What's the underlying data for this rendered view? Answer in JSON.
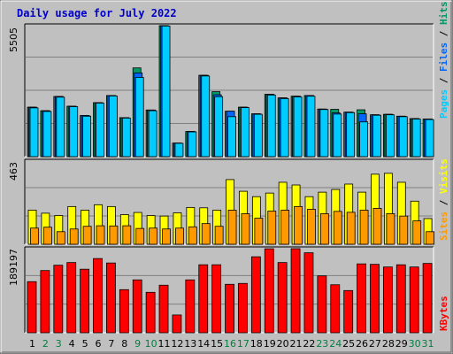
{
  "chart_data": [
    {
      "type": "bar",
      "title": "Daily usage for July 2022",
      "ylabel_parts": [
        "Pages",
        "Files",
        "Hits"
      ],
      "ymax_label": "5505",
      "ylim": [
        0,
        5505
      ],
      "grid": true,
      "categories": [
        "1",
        "2",
        "3",
        "4",
        "5",
        "6",
        "7",
        "8",
        "9",
        "10",
        "11",
        "12",
        "13",
        "14",
        "15",
        "16",
        "17",
        "18",
        "19",
        "20",
        "21",
        "22",
        "23",
        "24",
        "25",
        "26",
        "27",
        "28",
        "29",
        "30",
        "31"
      ],
      "weekend_days": [
        "2",
        "3",
        "9",
        "10",
        "16",
        "17",
        "23",
        "24",
        "30",
        "31"
      ],
      "series": [
        {
          "name": "Hits",
          "color": "#009966",
          "values": [
            2080,
            1930,
            2530,
            2120,
            1730,
            2270,
            2570,
            1640,
            3730,
            1960,
            5505,
            570,
            1060,
            3420,
            2730,
            1910,
            2080,
            1800,
            2620,
            2470,
            2540,
            2570,
            2000,
            1990,
            1870,
            1970,
            1760,
            1780,
            1700,
            1600,
            1580
          ]
        },
        {
          "name": "Files",
          "color": "#0066FF",
          "values": [
            2080,
            1930,
            2530,
            2120,
            1730,
            2270,
            2570,
            1640,
            3520,
            1960,
            5505,
            570,
            1060,
            3420,
            2600,
            1910,
            2080,
            1800,
            2620,
            2470,
            2540,
            2570,
            2000,
            1840,
            1870,
            1800,
            1760,
            1780,
            1700,
            1600,
            1580
          ]
        },
        {
          "name": "Pages",
          "color": "#00CCFF",
          "values": [
            2050,
            1900,
            2500,
            2100,
            1700,
            2250,
            2550,
            1620,
            3330,
            1930,
            5490,
            560,
            1040,
            3390,
            2520,
            1680,
            2060,
            1780,
            2590,
            2440,
            2510,
            2540,
            1980,
            1790,
            1850,
            1460,
            1740,
            1760,
            1680,
            1580,
            1560
          ]
        }
      ]
    },
    {
      "type": "bar",
      "ylabel_parts": [
        "Sites",
        "Visits"
      ],
      "ymax_label": "463",
      "ylim": [
        0,
        463
      ],
      "grid": true,
      "categories": [
        "1",
        "2",
        "3",
        "4",
        "5",
        "6",
        "7",
        "8",
        "9",
        "10",
        "11",
        "12",
        "13",
        "14",
        "15",
        "16",
        "17",
        "18",
        "19",
        "20",
        "21",
        "22",
        "23",
        "24",
        "25",
        "26",
        "27",
        "28",
        "29",
        "30",
        "31"
      ],
      "series": [
        {
          "name": "Visits",
          "color": "#FFFF00",
          "values": [
            190,
            173,
            160,
            210,
            190,
            220,
            210,
            165,
            177,
            160,
            157,
            175,
            205,
            203,
            190,
            360,
            295,
            265,
            285,
            345,
            330,
            265,
            290,
            305,
            335,
            290,
            390,
            395,
            345,
            240,
            143
          ]
        },
        {
          "name": "Sites",
          "color": "#FF9900",
          "values": [
            90,
            95,
            70,
            85,
            100,
            103,
            102,
            103,
            88,
            90,
            85,
            90,
            97,
            115,
            100,
            190,
            170,
            145,
            185,
            190,
            210,
            195,
            170,
            183,
            178,
            190,
            200,
            170,
            157,
            130,
            70
          ]
        }
      ]
    },
    {
      "type": "bar",
      "ylabel_parts": [
        "KBytes"
      ],
      "ymax_label": "189197",
      "ylim": [
        0,
        189197
      ],
      "grid": true,
      "categories": [
        "1",
        "2",
        "3",
        "4",
        "5",
        "6",
        "7",
        "8",
        "9",
        "10",
        "11",
        "12",
        "13",
        "14",
        "15",
        "16",
        "17",
        "18",
        "19",
        "20",
        "21",
        "22",
        "23",
        "24",
        "25",
        "26",
        "27",
        "28",
        "29",
        "30",
        "31"
      ],
      "series": [
        {
          "name": "KBytes",
          "color": "#FF0000",
          "values": [
            115000,
            140000,
            152000,
            158000,
            143000,
            167000,
            157000,
            97000,
            119000,
            91000,
            107000,
            40000,
            119000,
            153000,
            153000,
            109000,
            111000,
            171000,
            189000,
            158000,
            189197,
            180000,
            128000,
            108000,
            95000,
            155000,
            154000,
            148000,
            153000,
            148000,
            156000
          ]
        }
      ]
    }
  ]
}
